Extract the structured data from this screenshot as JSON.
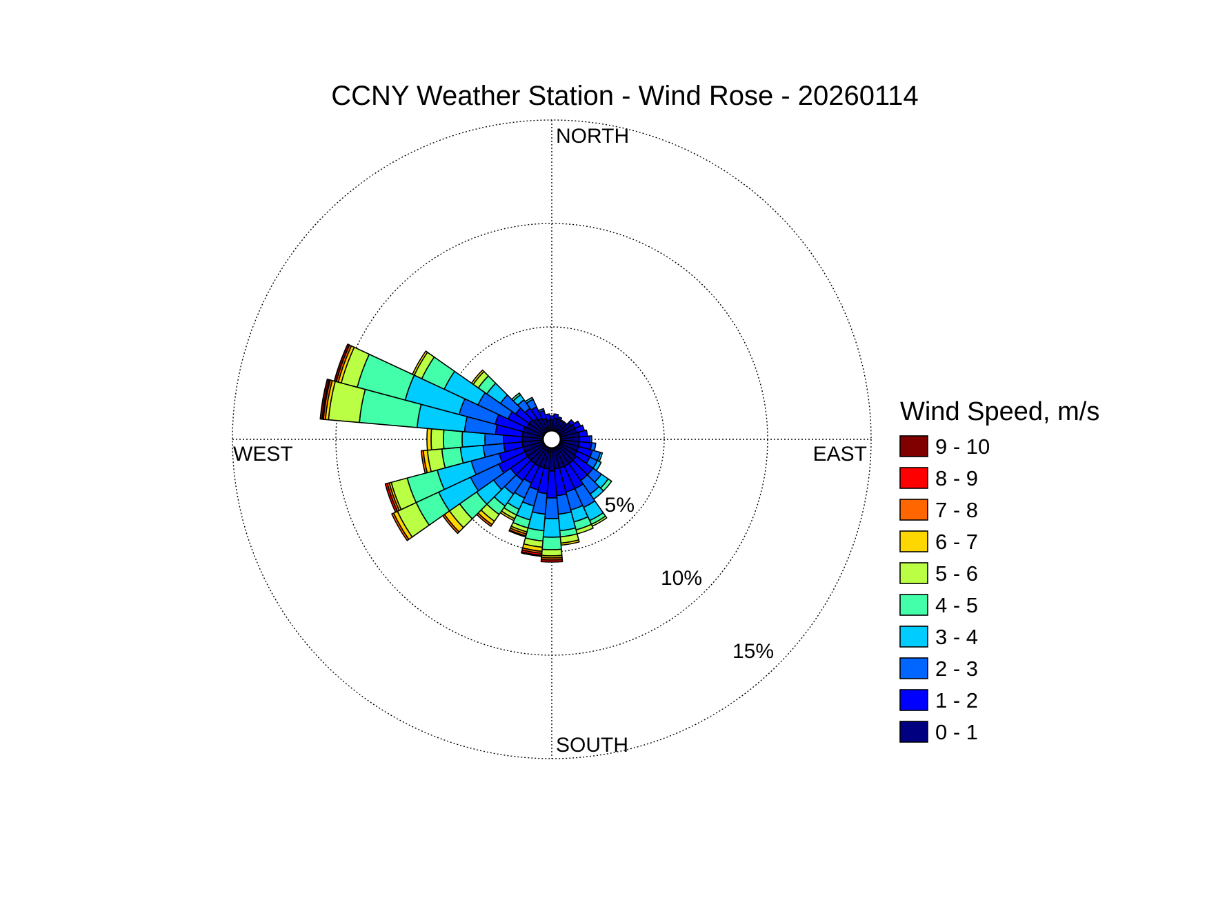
{
  "chart_data": {
    "type": "windrose",
    "title": "CCNY Weather Station - Wind Rose - 20260114",
    "directions": {
      "north": "NORTH",
      "east": "EAST",
      "south": "SOUTH",
      "west": "WEST"
    },
    "radial_unit": "%",
    "radial_ticks": [
      5,
      10,
      15
    ],
    "radial_tick_labels": [
      "5%",
      "10%",
      "15%"
    ],
    "rmax": 15,
    "grid": true,
    "legend": {
      "title": "Wind Speed, m/s",
      "placement": "right",
      "bins": [
        {
          "label": "9 - 10",
          "color": "#800000"
        },
        {
          "label": "8 - 9",
          "color": "#ff0000"
        },
        {
          "label": "7 - 8",
          "color": "#ff6600"
        },
        {
          "label": "6 - 7",
          "color": "#ffd700"
        },
        {
          "label": "5 - 6",
          "color": "#bbff44"
        },
        {
          "label": "4 - 5",
          "color": "#44ffaa"
        },
        {
          "label": "3 - 4",
          "color": "#00ccff"
        },
        {
          "label": "2 - 3",
          "color": "#0066ff"
        },
        {
          "label": "1 - 2",
          "color": "#0000ff"
        },
        {
          "label": "0 - 1",
          "color": "#000080"
        }
      ]
    },
    "sector_width_deg": 10,
    "bin_order": [
      "0-1",
      "1-2",
      "2-3",
      "3-4",
      "4-5",
      "5-6",
      "6-7",
      "7-8",
      "8-9",
      "9-10"
    ],
    "sectors": [
      {
        "dir": 0,
        "values": [
          0.5,
          0.2,
          0,
          0,
          0,
          0,
          0,
          0,
          0,
          0
        ]
      },
      {
        "dir": 10,
        "values": [
          0.6,
          0.2,
          0,
          0,
          0,
          0,
          0,
          0,
          0,
          0
        ]
      },
      {
        "dir": 20,
        "values": [
          0.6,
          0.1,
          0,
          0,
          0,
          0,
          0,
          0,
          0,
          0
        ]
      },
      {
        "dir": 30,
        "values": [
          0.6,
          0,
          0,
          0,
          0,
          0,
          0,
          0,
          0,
          0
        ]
      },
      {
        "dir": 40,
        "values": [
          0.6,
          0,
          0,
          0,
          0,
          0,
          0,
          0,
          0,
          0
        ]
      },
      {
        "dir": 50,
        "values": [
          0.7,
          0.2,
          0,
          0,
          0,
          0,
          0,
          0,
          0,
          0
        ]
      },
      {
        "dir": 60,
        "values": [
          0.8,
          0.3,
          0,
          0,
          0,
          0,
          0,
          0,
          0,
          0
        ]
      },
      {
        "dir": 70,
        "values": [
          0.8,
          0.4,
          0,
          0,
          0,
          0,
          0,
          0,
          0,
          0
        ]
      },
      {
        "dir": 80,
        "values": [
          0.9,
          0.4,
          0,
          0,
          0,
          0,
          0,
          0,
          0,
          0
        ]
      },
      {
        "dir": 90,
        "values": [
          0.9,
          0.5,
          0.1,
          0,
          0,
          0,
          0,
          0,
          0,
          0
        ]
      },
      {
        "dir": 100,
        "values": [
          0.9,
          0.6,
          0.2,
          0,
          0,
          0,
          0,
          0,
          0,
          0
        ]
      },
      {
        "dir": 110,
        "values": [
          0.9,
          0.7,
          0.4,
          0.1,
          0,
          0,
          0,
          0,
          0,
          0
        ]
      },
      {
        "dir": 120,
        "values": [
          0.9,
          0.7,
          0.4,
          0.2,
          0,
          0,
          0,
          0,
          0,
          0
        ]
      },
      {
        "dir": 130,
        "values": [
          1.0,
          1.0,
          0.5,
          0.4,
          0.2,
          0,
          0,
          0,
          0,
          0
        ]
      },
      {
        "dir": 140,
        "values": [
          1.0,
          1.0,
          0.8,
          0.3,
          0,
          0,
          0,
          0,
          0,
          0
        ]
      },
      {
        "dir": 150,
        "values": [
          1.0,
          1.2,
          1.0,
          0.7,
          0.2,
          0.1,
          0,
          0,
          0,
          0
        ]
      },
      {
        "dir": 160,
        "values": [
          1.0,
          1.2,
          0.9,
          0.6,
          0.4,
          0.2,
          0,
          0,
          0,
          0
        ]
      },
      {
        "dir": 170,
        "values": [
          1.0,
          1.3,
          0.9,
          0.8,
          0.3,
          0.3,
          0.1,
          0,
          0,
          0
        ]
      },
      {
        "dir": 180,
        "values": [
          1.1,
          1.3,
          1.0,
          0.9,
          0.6,
          0.3,
          0.1,
          0.1,
          0.1,
          0
        ]
      },
      {
        "dir": 190,
        "values": [
          1.0,
          1.2,
          1.0,
          0.8,
          0.5,
          0.3,
          0.2,
          0.1,
          0.1,
          0.05
        ]
      },
      {
        "dir": 200,
        "values": [
          1.0,
          1.1,
          0.8,
          0.7,
          0.4,
          0.2,
          0.1,
          0.1,
          0.05,
          0
        ]
      },
      {
        "dir": 210,
        "values": [
          1.0,
          0.9,
          0.8,
          0.6,
          0.3,
          0.2,
          0.1,
          0,
          0,
          0
        ]
      },
      {
        "dir": 220,
        "values": [
          1.0,
          1.0,
          0.8,
          0.7,
          0.5,
          0.4,
          0.2,
          0.1,
          0,
          0
        ]
      },
      {
        "dir": 230,
        "values": [
          1.0,
          1.0,
          1.0,
          1.0,
          1.0,
          0.6,
          0.3,
          0.1,
          0,
          0
        ]
      },
      {
        "dir": 240,
        "values": [
          1.0,
          1.4,
          1.5,
          1.7,
          1.2,
          1.0,
          0.2,
          0.1,
          0,
          0
        ]
      },
      {
        "dir": 250,
        "values": [
          1.0,
          1.2,
          1.4,
          1.7,
          1.5,
          0.8,
          0.1,
          0.1,
          0.1,
          0
        ]
      },
      {
        "dir": 260,
        "values": [
          1.0,
          0.9,
          1.0,
          1.1,
          0.9,
          0.7,
          0.2,
          0.1,
          0,
          0
        ]
      },
      {
        "dir": 270,
        "values": [
          1.0,
          0.9,
          0.9,
          1.1,
          0.9,
          0.6,
          0.2,
          0,
          0,
          0
        ]
      },
      {
        "dir": 280,
        "values": [
          1.0,
          1.3,
          1.5,
          2.3,
          2.8,
          1.5,
          0.15,
          0.1,
          0.05,
          0.1
        ]
      },
      {
        "dir": 290,
        "values": [
          1.0,
          1.4,
          1.8,
          2.7,
          2.4,
          0.8,
          0.15,
          0.1,
          0,
          0.1
        ]
      },
      {
        "dir": 300,
        "values": [
          0.9,
          1.0,
          1.6,
          1.8,
          1.2,
          0.4,
          0.1,
          0,
          0,
          0
        ]
      },
      {
        "dir": 310,
        "values": [
          0.9,
          0.8,
          0.9,
          0.8,
          0.5,
          0.3,
          0.1,
          0,
          0,
          0
        ]
      },
      {
        "dir": 320,
        "values": [
          0.8,
          0.6,
          0.5,
          0.3,
          0.1,
          0,
          0,
          0,
          0,
          0
        ]
      },
      {
        "dir": 330,
        "values": [
          0.7,
          0.6,
          0.4,
          0.1,
          0,
          0,
          0,
          0,
          0,
          0
        ]
      },
      {
        "dir": 340,
        "values": [
          0.6,
          0.4,
          0.1,
          0,
          0,
          0,
          0,
          0,
          0,
          0
        ]
      },
      {
        "dir": 350,
        "values": [
          0.5,
          0.3,
          0,
          0,
          0,
          0,
          0,
          0,
          0,
          0
        ]
      }
    ]
  }
}
